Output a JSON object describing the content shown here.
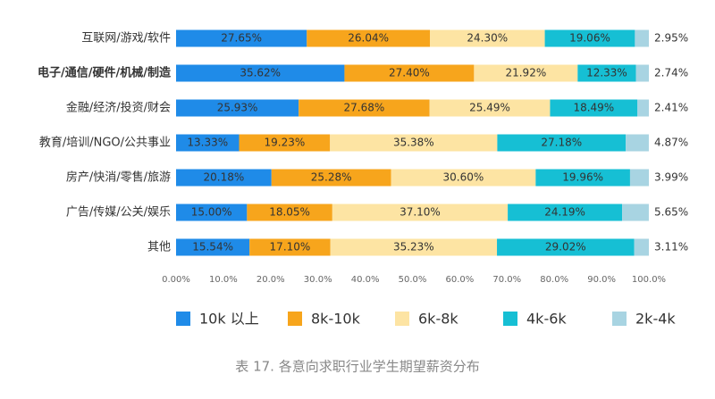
{
  "chart_data": {
    "type": "stacked_barh",
    "caption": "表 17. 各意向求职行业学生期望薪资分布",
    "categories": [
      "互联网/游戏/软件",
      "电子/通信/硬件/机械/制造",
      "金融/经济/投资/财会",
      "教育/培训/NGO/公共事业",
      "房产/快消/零售/旅游",
      "广告/传媒/公关/娱乐",
      "其他"
    ],
    "series": [
      {
        "name": "10k 以上",
        "color": "#1f8be8",
        "values": [
          27.65,
          35.62,
          25.93,
          13.33,
          20.18,
          15.0,
          15.54
        ],
        "value_labels": [
          "27.65%",
          "35.62%",
          "25.93%",
          "13.33%",
          "20.18%",
          "15.00%",
          "15.54%"
        ]
      },
      {
        "name": "8k-10k",
        "color": "#f7a51c",
        "values": [
          26.04,
          27.4,
          27.68,
          19.23,
          25.28,
          18.05,
          17.1
        ],
        "value_labels": [
          "26.04%",
          "27.40%",
          "27.68%",
          "19.23%",
          "25.28%",
          "18.05%",
          "17.10%"
        ]
      },
      {
        "name": "6k-8k",
        "color": "#fde4a3",
        "values": [
          24.3,
          21.92,
          25.49,
          35.38,
          30.6,
          37.1,
          35.23
        ],
        "value_labels": [
          "24.30%",
          "21.92%",
          "25.49%",
          "35.38%",
          "30.60%",
          "37.10%",
          "35.23%"
        ]
      },
      {
        "name": "4k-6k",
        "color": "#16bfd4",
        "values": [
          19.06,
          12.33,
          18.49,
          27.18,
          19.96,
          24.19,
          29.02
        ],
        "value_labels": [
          "19.06%",
          "12.33%",
          "18.49%",
          "27.18%",
          "19.96%",
          "24.19%",
          "29.02%"
        ]
      },
      {
        "name": "2k-4k",
        "color": "#a8d4e2",
        "values": [
          2.95,
          2.74,
          2.41,
          4.87,
          3.99,
          5.65,
          3.11
        ],
        "value_labels": [
          "2.95%",
          "2.74%",
          "2.41%",
          "4.87%",
          "3.99%",
          "5.65%",
          "3.11%"
        ]
      }
    ],
    "xlim": [
      0,
      100
    ],
    "xticks": [
      {
        "value": 0,
        "label": "0.00%"
      },
      {
        "value": 10,
        "label": "10.0%"
      },
      {
        "value": 20,
        "label": "20.0%"
      },
      {
        "value": 30,
        "label": "30.0%"
      },
      {
        "value": 40,
        "label": "40.0%"
      },
      {
        "value": 50,
        "label": "50.0%"
      },
      {
        "value": 60,
        "label": "60.0%"
      },
      {
        "value": 70,
        "label": "70.0%"
      },
      {
        "value": 80,
        "label": "80.0%"
      },
      {
        "value": 90,
        "label": "90.0%"
      },
      {
        "value": 100,
        "label": "100.0%"
      }
    ]
  }
}
